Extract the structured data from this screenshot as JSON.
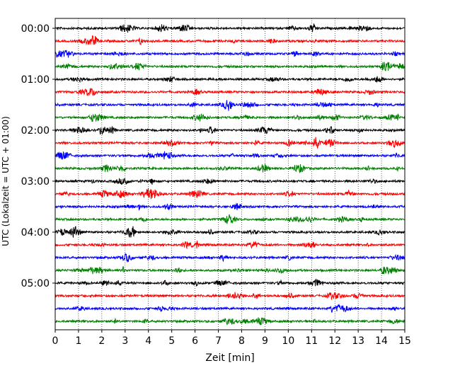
{
  "chart_data": {
    "type": "line",
    "title": "",
    "xlabel": "Zeit  [min]",
    "ylabel": "UTC (Lokalzeit = UTC + 01:00)",
    "xlim": [
      0,
      15
    ],
    "x_ticks": [
      0,
      1,
      2,
      3,
      4,
      5,
      6,
      7,
      8,
      9,
      10,
      11,
      12,
      13,
      14,
      15
    ],
    "y_tick_labels": [
      "00:00",
      "01:00",
      "02:00",
      "03:00",
      "04:00",
      "05:00"
    ],
    "trace_interval_minutes": 15,
    "trace_count": 24,
    "color_cycle": [
      "#000000",
      "#ff0000",
      "#0000ff",
      "#008000"
    ],
    "vertical_grid": "dotted",
    "legend": "none"
  }
}
